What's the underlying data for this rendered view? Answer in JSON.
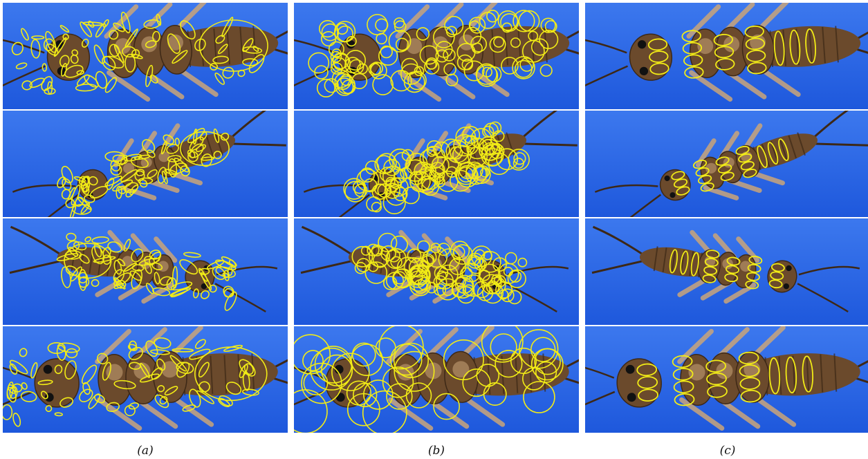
{
  "figure": {
    "captions": [
      "(a)",
      "(b)",
      "(c)"
    ]
  },
  "colors": {
    "background": "#1e58dc",
    "background_light": "#3c78ee",
    "insect_body": "#6b4a2c",
    "insect_dark": "#3d2816",
    "insect_light": "#caa57a",
    "detection": "#f2ec16"
  }
}
